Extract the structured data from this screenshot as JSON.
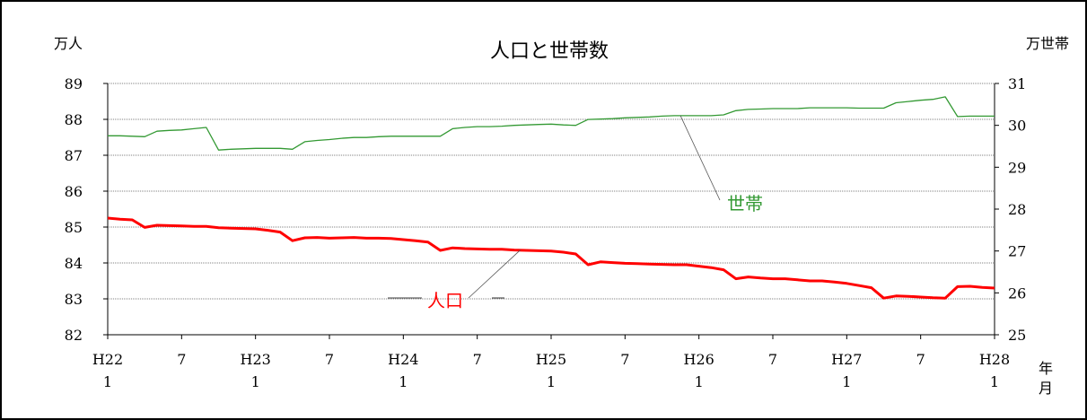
{
  "chart_data": {
    "type": "line",
    "title": "人口と世帯数",
    "left_axis_unit": "万人",
    "right_axis_unit": "万世帯",
    "x_axis_unit": [
      "年",
      "月"
    ],
    "x_tick_labels": [
      {
        "year": "H22",
        "month": "1"
      },
      {
        "year": "",
        "month": "7"
      },
      {
        "year": "H23",
        "month": "1"
      },
      {
        "year": "",
        "month": "7"
      },
      {
        "year": "H24",
        "month": "1"
      },
      {
        "year": "",
        "month": "7"
      },
      {
        "year": "H25",
        "month": "1"
      },
      {
        "year": "",
        "month": "7"
      },
      {
        "year": "H26",
        "month": "1"
      },
      {
        "year": "",
        "month": "7"
      },
      {
        "year": "H27",
        "month": "1"
      },
      {
        "year": "",
        "month": "7"
      },
      {
        "year": "H28",
        "month": "1"
      }
    ],
    "y_left": {
      "min": 82,
      "max": 89,
      "ticks": [
        82,
        83,
        84,
        85,
        86,
        87,
        88,
        89
      ]
    },
    "y_right": {
      "min": 25,
      "max": 31,
      "ticks": [
        25,
        26,
        27,
        28,
        29,
        30,
        31
      ]
    },
    "grid": "horizontal",
    "series": [
      {
        "name": "人口",
        "axis": "left",
        "color": "#ff0000",
        "values": [
          85.25,
          85.22,
          85.2,
          84.99,
          85.05,
          85.04,
          85.03,
          85.02,
          85.02,
          84.98,
          84.97,
          84.96,
          84.95,
          84.91,
          84.86,
          84.62,
          84.7,
          84.71,
          84.69,
          84.7,
          84.71,
          84.69,
          84.69,
          84.68,
          84.65,
          84.62,
          84.58,
          84.35,
          84.42,
          84.4,
          84.39,
          84.38,
          84.38,
          84.36,
          84.35,
          84.34,
          84.33,
          84.3,
          84.25,
          83.95,
          84.03,
          84.01,
          83.99,
          83.98,
          83.97,
          83.96,
          83.95,
          83.95,
          83.91,
          83.87,
          83.81,
          83.56,
          83.61,
          83.58,
          83.56,
          83.56,
          83.53,
          83.5,
          83.5,
          83.47,
          83.43,
          83.37,
          83.31,
          83.02,
          83.08,
          83.07,
          83.05,
          83.03,
          83.02,
          83.34,
          83.35,
          83.32,
          83.3
        ]
      },
      {
        "name": "世帯",
        "axis": "right",
        "color": "#339933",
        "values": [
          29.75,
          29.75,
          29.74,
          29.73,
          29.86,
          29.88,
          29.89,
          29.92,
          29.95,
          29.41,
          29.43,
          29.44,
          29.45,
          29.45,
          29.45,
          29.43,
          29.61,
          29.64,
          29.66,
          29.69,
          29.71,
          29.71,
          29.73,
          29.74,
          29.74,
          29.74,
          29.74,
          29.74,
          29.92,
          29.95,
          29.97,
          29.97,
          29.98,
          30.0,
          30.01,
          30.02,
          30.03,
          30.01,
          30.0,
          30.14,
          30.15,
          30.16,
          30.18,
          30.19,
          30.2,
          30.22,
          30.23,
          30.23,
          30.23,
          30.23,
          30.25,
          30.35,
          30.38,
          30.39,
          30.4,
          30.4,
          30.4,
          30.42,
          30.42,
          30.42,
          30.42,
          30.41,
          30.41,
          30.41,
          30.54,
          30.57,
          30.6,
          30.62,
          30.68,
          30.21,
          30.22,
          30.22,
          30.22
        ]
      }
    ],
    "annotations": [
      {
        "text": "世帯",
        "series": "世帯",
        "color": "#339933",
        "point_index": 38
      },
      {
        "text": "人口",
        "series": "人口",
        "color": "#ff0000",
        "point_index": 33
      }
    ]
  }
}
